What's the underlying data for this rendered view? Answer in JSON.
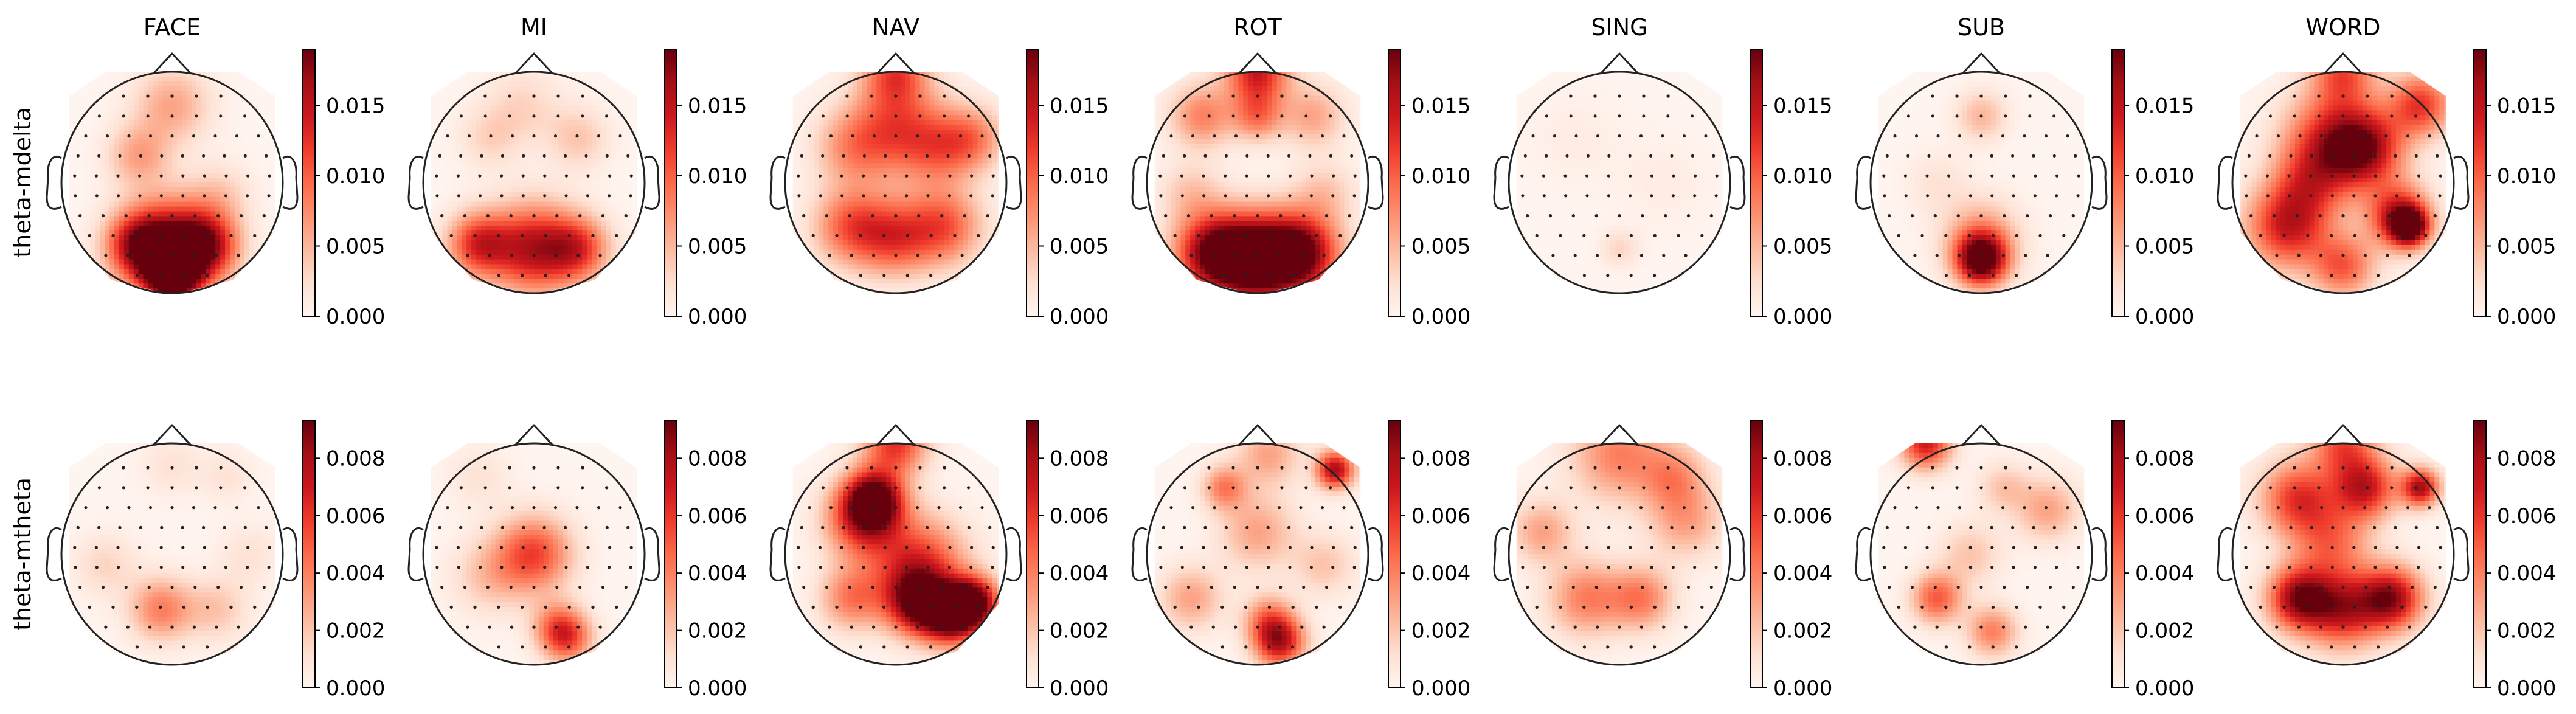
{
  "figure": {
    "column_titles": [
      "FACE",
      "MI",
      "NAV",
      "ROT",
      "SING",
      "SUB",
      "WORD"
    ],
    "row_labels": [
      "theta-mdelta",
      "theta-mtheta"
    ]
  },
  "colormap": {
    "name": "Reds",
    "stops": [
      "#fff5f0",
      "#fee0d2",
      "#fcbba1",
      "#fc9272",
      "#fb6a4a",
      "#ef3b2c",
      "#cb181d",
      "#a50f15",
      "#67000d"
    ]
  },
  "chart_data": {
    "type": "heatmap",
    "subtype": "topomap-grid",
    "head_outline_color": "#222222",
    "sensor_color": "#222222",
    "rows": [
      {
        "name": "theta-mdelta",
        "colorbar": {
          "min": 0.0,
          "max": 0.019,
          "ticks": [
            0.0,
            0.005,
            0.01,
            0.015
          ],
          "tick_labels": [
            "0.000",
            "0.005",
            "0.010",
            "0.015"
          ]
        },
        "maps": {
          "FACE": [
            [
              0.5,
              0.15,
              0.006,
              0.12
            ],
            [
              0.35,
              0.38,
              0.006,
              0.1
            ],
            [
              0.5,
              0.8,
              0.018,
              0.15
            ],
            [
              0.35,
              0.78,
              0.012,
              0.1
            ],
            [
              0.65,
              0.78,
              0.012,
              0.1
            ],
            [
              0.5,
              0.92,
              0.02,
              0.08
            ],
            [
              0.72,
              0.55,
              0.003,
              0.1
            ]
          ],
          "MI": [
            [
              0.45,
              0.15,
              0.003,
              0.12
            ],
            [
              0.7,
              0.3,
              0.004,
              0.1
            ],
            [
              0.5,
              0.8,
              0.015,
              0.14
            ],
            [
              0.25,
              0.78,
              0.012,
              0.1
            ],
            [
              0.7,
              0.8,
              0.01,
              0.1
            ],
            [
              0.3,
              0.3,
              0.003,
              0.1
            ]
          ],
          "NAV": [
            [
              0.5,
              0.0,
              0.01,
              0.1
            ],
            [
              0.5,
              0.25,
              0.01,
              0.15
            ],
            [
              0.3,
              0.35,
              0.006,
              0.12
            ],
            [
              0.7,
              0.35,
              0.007,
              0.12
            ],
            [
              0.3,
              0.7,
              0.01,
              0.12
            ],
            [
              0.5,
              0.75,
              0.01,
              0.12
            ],
            [
              0.72,
              0.7,
              0.01,
              0.12
            ],
            [
              0.85,
              0.3,
              0.007,
              0.1
            ]
          ],
          "ROT": [
            [
              0.5,
              0.0,
              0.014,
              0.1
            ],
            [
              0.25,
              0.2,
              0.008,
              0.1
            ],
            [
              0.75,
              0.2,
              0.006,
              0.1
            ],
            [
              0.5,
              0.2,
              0.008,
              0.08
            ],
            [
              0.5,
              0.85,
              0.022,
              0.14
            ],
            [
              0.3,
              0.82,
              0.017,
              0.12
            ],
            [
              0.7,
              0.82,
              0.017,
              0.12
            ],
            [
              0.2,
              0.55,
              0.004,
              0.1
            ],
            [
              0.8,
              0.55,
              0.004,
              0.1
            ]
          ],
          "SING": [
            [
              0.3,
              0.3,
              0.001,
              0.15
            ],
            [
              0.7,
              0.5,
              0.001,
              0.15
            ],
            [
              0.5,
              0.8,
              0.003,
              0.06
            ]
          ],
          "SUB": [
            [
              0.5,
              0.2,
              0.005,
              0.08
            ],
            [
              0.5,
              0.85,
              0.02,
              0.08
            ],
            [
              0.5,
              0.75,
              0.007,
              0.12
            ],
            [
              0.3,
              0.5,
              0.002,
              0.1
            ]
          ],
          "WORD": [
            [
              0.5,
              0.0,
              0.01,
              0.1
            ],
            [
              0.45,
              0.3,
              0.012,
              0.15
            ],
            [
              0.6,
              0.35,
              0.014,
              0.12
            ],
            [
              0.25,
              0.7,
              0.014,
              0.13
            ],
            [
              0.75,
              0.65,
              0.014,
              0.1
            ],
            [
              0.8,
              0.7,
              0.018,
              0.06
            ],
            [
              0.85,
              0.15,
              0.012,
              0.1
            ],
            [
              0.35,
              0.5,
              0.008,
              0.12
            ],
            [
              0.5,
              0.88,
              0.01,
              0.1
            ]
          ]
        }
      },
      {
        "name": "theta-mtheta",
        "colorbar": {
          "min": 0.0,
          "max": 0.0093,
          "ticks": [
            0.0,
            0.002,
            0.004,
            0.006,
            0.008
          ],
          "tick_labels": [
            "0.000",
            "0.002",
            "0.004",
            "0.006",
            "0.008"
          ]
        },
        "maps": {
          "FACE": [
            [
              0.45,
              0.75,
              0.004,
              0.1
            ],
            [
              0.7,
              0.75,
              0.002,
              0.1
            ],
            [
              0.2,
              0.55,
              0.0015,
              0.1
            ],
            [
              0.85,
              0.5,
              0.001,
              0.1
            ],
            [
              0.5,
              0.1,
              0.001,
              0.1
            ],
            [
              0.75,
              0.15,
              0.001,
              0.08
            ]
          ],
          "MI": [
            [
              0.5,
              0.5,
              0.0055,
              0.12
            ],
            [
              0.65,
              0.88,
              0.005,
              0.08
            ],
            [
              0.6,
              0.82,
              0.003,
              0.08
            ],
            [
              0.3,
              0.6,
              0.002,
              0.12
            ],
            [
              0.25,
              0.15,
              0.001,
              0.1
            ]
          ],
          "NAV": [
            [
              0.5,
              0.0,
              0.006,
              0.1
            ],
            [
              0.4,
              0.25,
              0.009,
              0.09
            ],
            [
              0.35,
              0.35,
              0.006,
              0.12
            ],
            [
              0.6,
              0.55,
              0.006,
              0.15
            ],
            [
              0.75,
              0.78,
              0.009,
              0.09
            ],
            [
              0.85,
              0.72,
              0.009,
              0.08
            ],
            [
              0.6,
              0.72,
              0.008,
              0.1
            ],
            [
              0.3,
              0.7,
              0.004,
              0.1
            ]
          ],
          "ROT": [
            [
              0.85,
              0.12,
              0.008,
              0.06
            ],
            [
              0.6,
              0.9,
              0.007,
              0.08
            ],
            [
              0.55,
              0.8,
              0.004,
              0.08
            ],
            [
              0.35,
              0.2,
              0.004,
              0.07
            ],
            [
              0.5,
              0.4,
              0.003,
              0.12
            ],
            [
              0.2,
              0.7,
              0.003,
              0.1
            ],
            [
              0.8,
              0.55,
              0.002,
              0.1
            ],
            [
              0.55,
              0.05,
              0.003,
              0.1
            ]
          ],
          "SING": [
            [
              0.5,
              0.05,
              0.004,
              0.15
            ],
            [
              0.35,
              0.7,
              0.004,
              0.12
            ],
            [
              0.6,
              0.7,
              0.004,
              0.1
            ],
            [
              0.15,
              0.4,
              0.003,
              0.1
            ],
            [
              0.8,
              0.35,
              0.003,
              0.12
            ],
            [
              0.75,
              0.15,
              0.003,
              0.1
            ]
          ],
          "SUB": [
            [
              0.25,
              0.0,
              0.007,
              0.08
            ],
            [
              0.3,
              0.7,
              0.005,
              0.08
            ],
            [
              0.55,
              0.85,
              0.004,
              0.08
            ],
            [
              0.8,
              0.3,
              0.003,
              0.1
            ],
            [
              0.45,
              0.5,
              0.002,
              0.1
            ],
            [
              0.6,
              0.2,
              0.002,
              0.08
            ]
          ],
          "WORD": [
            [
              0.5,
              0.0,
              0.005,
              0.1
            ],
            [
              0.3,
              0.25,
              0.006,
              0.12
            ],
            [
              0.6,
              0.2,
              0.007,
              0.1
            ],
            [
              0.85,
              0.2,
              0.008,
              0.06
            ],
            [
              0.3,
              0.7,
              0.008,
              0.1
            ],
            [
              0.5,
              0.75,
              0.007,
              0.12
            ],
            [
              0.72,
              0.7,
              0.008,
              0.1
            ],
            [
              0.45,
              0.45,
              0.004,
              0.12
            ]
          ]
        }
      }
    ]
  }
}
